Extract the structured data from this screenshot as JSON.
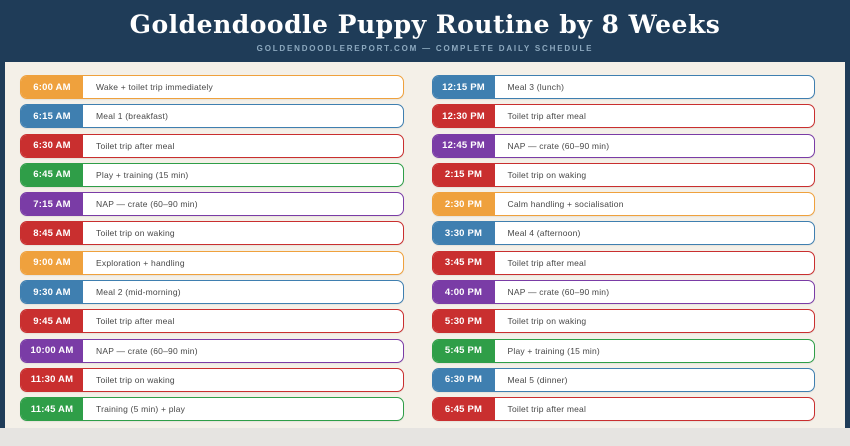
{
  "header": {
    "title": "Goldendoodle Puppy Routine by 8 Weeks",
    "subtitle": "GOLDENDOODLEREPORT.COM — COMPLETE DAILY SCHEDULE"
  },
  "colors": {
    "navy": "#1f3c58",
    "cream": "#f4f0e8",
    "footer_gray": "#e6e4e1",
    "subtitle_text": "#8da9bf",
    "label_text": "#474747",
    "palette": {
      "orange": "#efa13d",
      "blue": "#3f7fb0",
      "red": "#c92f2f",
      "green": "#2f9e48",
      "purple": "#7a3ca6"
    }
  },
  "schedule": {
    "columns": [
      {
        "rows": [
          {
            "time": "6:00 AM",
            "label": "Wake + toilet trip immediately",
            "color": "orange"
          },
          {
            "time": "6:15 AM",
            "label": "Meal 1 (breakfast)",
            "color": "blue"
          },
          {
            "time": "6:30 AM",
            "label": "Toilet trip after meal",
            "color": "red"
          },
          {
            "time": "6:45 AM",
            "label": "Play + training (15 min)",
            "color": "green"
          },
          {
            "time": "7:15 AM",
            "label": "NAP — crate (60–90 min)",
            "color": "purple"
          },
          {
            "time": "8:45 AM",
            "label": "Toilet trip on waking",
            "color": "red"
          },
          {
            "time": "9:00 AM",
            "label": "Exploration + handling",
            "color": "orange"
          },
          {
            "time": "9:30 AM",
            "label": "Meal 2 (mid-morning)",
            "color": "blue"
          },
          {
            "time": "9:45 AM",
            "label": "Toilet trip after meal",
            "color": "red"
          },
          {
            "time": "10:00 AM",
            "label": "NAP — crate (60–90 min)",
            "color": "purple"
          },
          {
            "time": "11:30 AM",
            "label": "Toilet trip on waking",
            "color": "red"
          },
          {
            "time": "11:45 AM",
            "label": "Training (5 min) + play",
            "color": "green"
          }
        ]
      },
      {
        "rows": [
          {
            "time": "12:15 PM",
            "label": "Meal 3 (lunch)",
            "color": "blue"
          },
          {
            "time": "12:30 PM",
            "label": "Toilet trip after meal",
            "color": "red"
          },
          {
            "time": "12:45 PM",
            "label": "NAP — crate (60–90 min)",
            "color": "purple"
          },
          {
            "time": "2:15 PM",
            "label": "Toilet trip on waking",
            "color": "red"
          },
          {
            "time": "2:30 PM",
            "label": "Calm handling + socialisation",
            "color": "orange"
          },
          {
            "time": "3:30 PM",
            "label": "Meal 4 (afternoon)",
            "color": "blue"
          },
          {
            "time": "3:45 PM",
            "label": "Toilet trip after meal",
            "color": "red"
          },
          {
            "time": "4:00 PM",
            "label": "NAP — crate (60–90 min)",
            "color": "purple"
          },
          {
            "time": "5:30 PM",
            "label": "Toilet trip on waking",
            "color": "red"
          },
          {
            "time": "5:45 PM",
            "label": "Play + training (15 min)",
            "color": "green"
          },
          {
            "time": "6:30 PM",
            "label": "Meal 5 (dinner)",
            "color": "blue"
          },
          {
            "time": "6:45 PM",
            "label": "Toilet trip after meal",
            "color": "red"
          }
        ]
      }
    ]
  }
}
